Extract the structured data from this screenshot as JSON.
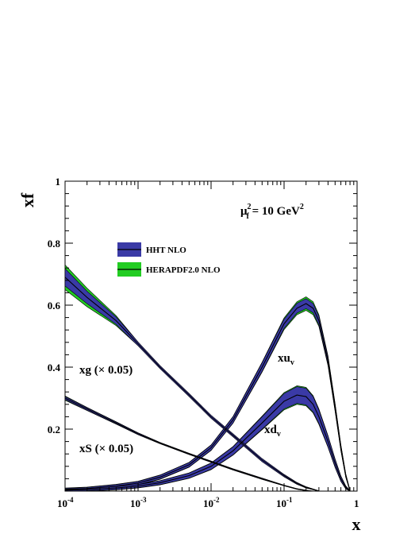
{
  "chart_data": {
    "type": "line",
    "x_scale": "log",
    "xlim": [
      0.0001,
      1
    ],
    "ylim": [
      0,
      1
    ],
    "xlabel": "x",
    "ylabel": "xf",
    "x_ticks": [
      {
        "value": 0.0001,
        "base": "10",
        "exp": "-4"
      },
      {
        "value": 0.001,
        "base": "10",
        "exp": "-3"
      },
      {
        "value": 0.01,
        "base": "10",
        "exp": "-2"
      },
      {
        "value": 0.1,
        "base": "10",
        "exp": "-1"
      },
      {
        "value": 1,
        "base": "1",
        "exp": ""
      }
    ],
    "y_ticks": [
      {
        "value": 0.2,
        "label": "0.2"
      },
      {
        "value": 0.4,
        "label": "0.4"
      },
      {
        "value": 0.6,
        "label": "0.6"
      },
      {
        "value": 0.8,
        "label": "0.8"
      },
      {
        "value": 1.0,
        "label": "1"
      }
    ],
    "scale_annotation": {
      "prefix": "μ",
      "sub": "f",
      "sup": "2",
      "rest": " = 10 GeV",
      "unit_sup": "2"
    },
    "legend": {
      "placement": "top-left",
      "entries": [
        {
          "label": "HHT NLO",
          "color": "#3a3aa6"
        },
        {
          "label": "HERAPDF2.0 NLO",
          "color": "#22cc22"
        }
      ]
    },
    "colors": {
      "hht_band": "#3a3aa6",
      "herapdf_band": "#22cc22",
      "central_line": "#000000"
    },
    "curve_labels": {
      "xuv": {
        "main": "xu",
        "sub": "v"
      },
      "xdv": {
        "main": "xd",
        "sub": "v"
      },
      "xg": {
        "text": "xg (× 0.05)"
      },
      "xs": {
        "text": "xS (× 0.05)"
      }
    },
    "series": [
      {
        "id": "xuv",
        "x": [
          0.0001,
          0.0002,
          0.0005,
          0.001,
          0.002,
          0.005,
          0.01,
          0.02,
          0.05,
          0.1,
          0.15,
          0.2,
          0.25,
          0.3,
          0.4,
          0.5,
          0.6,
          0.7,
          0.8
        ],
        "y": [
          0.005,
          0.008,
          0.016,
          0.026,
          0.045,
          0.085,
          0.14,
          0.23,
          0.4,
          0.54,
          0.59,
          0.605,
          0.59,
          0.55,
          0.42,
          0.27,
          0.14,
          0.05,
          0.0
        ],
        "hht_band": [
          0.004,
          0.004,
          0.005,
          0.005,
          0.006,
          0.007,
          0.008,
          0.01,
          0.014,
          0.015,
          0.016,
          0.016,
          0.015,
          0.014,
          0.012,
          0.01,
          0.008,
          0.005,
          0.002
        ],
        "hera_band": [
          0.005,
          0.005,
          0.006,
          0.006,
          0.007,
          0.008,
          0.009,
          0.011,
          0.016,
          0.019,
          0.021,
          0.022,
          0.021,
          0.019,
          0.016,
          0.013,
          0.01,
          0.006,
          0.003
        ]
      },
      {
        "id": "xdv",
        "x": [
          0.0001,
          0.0002,
          0.0005,
          0.001,
          0.002,
          0.005,
          0.01,
          0.02,
          0.05,
          0.1,
          0.15,
          0.2,
          0.25,
          0.3,
          0.4,
          0.5,
          0.6,
          0.7,
          0.8
        ],
        "y": [
          0.003,
          0.005,
          0.01,
          0.016,
          0.027,
          0.05,
          0.08,
          0.13,
          0.22,
          0.29,
          0.31,
          0.305,
          0.28,
          0.24,
          0.16,
          0.09,
          0.04,
          0.012,
          0.0
        ],
        "hht_band": [
          0.004,
          0.004,
          0.005,
          0.005,
          0.006,
          0.008,
          0.01,
          0.013,
          0.02,
          0.025,
          0.027,
          0.027,
          0.025,
          0.022,
          0.017,
          0.012,
          0.008,
          0.004,
          0.002
        ],
        "hera_band": [
          0.005,
          0.005,
          0.006,
          0.006,
          0.007,
          0.009,
          0.011,
          0.014,
          0.022,
          0.028,
          0.03,
          0.03,
          0.028,
          0.025,
          0.019,
          0.014,
          0.009,
          0.005,
          0.002
        ]
      },
      {
        "id": "xg",
        "x": [
          0.0001,
          0.0002,
          0.0005,
          0.001,
          0.002,
          0.005,
          0.01,
          0.02,
          0.05,
          0.1,
          0.15,
          0.2,
          0.3
        ],
        "y": [
          0.69,
          0.625,
          0.55,
          0.475,
          0.4,
          0.31,
          0.24,
          0.18,
          0.1,
          0.05,
          0.025,
          0.012,
          0.0
        ],
        "hht_band": [
          0.028,
          0.02,
          0.012,
          0.006,
          0.005,
          0.005,
          0.005,
          0.005,
          0.005,
          0.004,
          0.003,
          0.002,
          0.001
        ],
        "hera_band": [
          0.04,
          0.03,
          0.016,
          0.006,
          0.004,
          0.004,
          0.004,
          0.004,
          0.004,
          0.003,
          0.002,
          0.002,
          0.001
        ]
      },
      {
        "id": "xs",
        "x": [
          0.0001,
          0.0002,
          0.0005,
          0.001,
          0.002,
          0.005,
          0.01,
          0.02,
          0.05,
          0.1,
          0.15,
          0.2,
          0.25
        ],
        "y": [
          0.3,
          0.265,
          0.22,
          0.185,
          0.155,
          0.12,
          0.095,
          0.07,
          0.04,
          0.018,
          0.007,
          0.002,
          0.0
        ],
        "hht_band": [
          0.005,
          0.004,
          0.003,
          0.003,
          0.002,
          0.002,
          0.002,
          0.002,
          0.002,
          0.001,
          0.001,
          0.001,
          0.0
        ],
        "hera_band": [
          0.007,
          0.005,
          0.004,
          0.003,
          0.002,
          0.002,
          0.002,
          0.002,
          0.002,
          0.001,
          0.001,
          0.001,
          0.0
        ]
      }
    ]
  }
}
